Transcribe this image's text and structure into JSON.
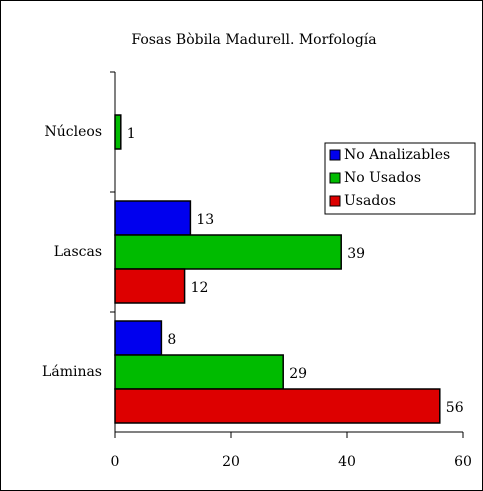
{
  "chart_data": {
    "type": "barh",
    "title": "Fosas Bòbila Madurell. Morfología",
    "categories": [
      "Núcleos",
      "Lascas",
      "Láminas"
    ],
    "series": [
      {
        "name": "No Analizables",
        "color": "#0000ee",
        "values": [
          null,
          13,
          8
        ]
      },
      {
        "name": "No Usados",
        "color": "#00bb00",
        "values": [
          1,
          39,
          29
        ]
      },
      {
        "name": "Usados",
        "color": "#dd0000",
        "values": [
          null,
          12,
          56
        ]
      }
    ],
    "xlim": [
      0,
      60
    ],
    "xticks": [
      0,
      20,
      40,
      60
    ],
    "grid": false
  }
}
